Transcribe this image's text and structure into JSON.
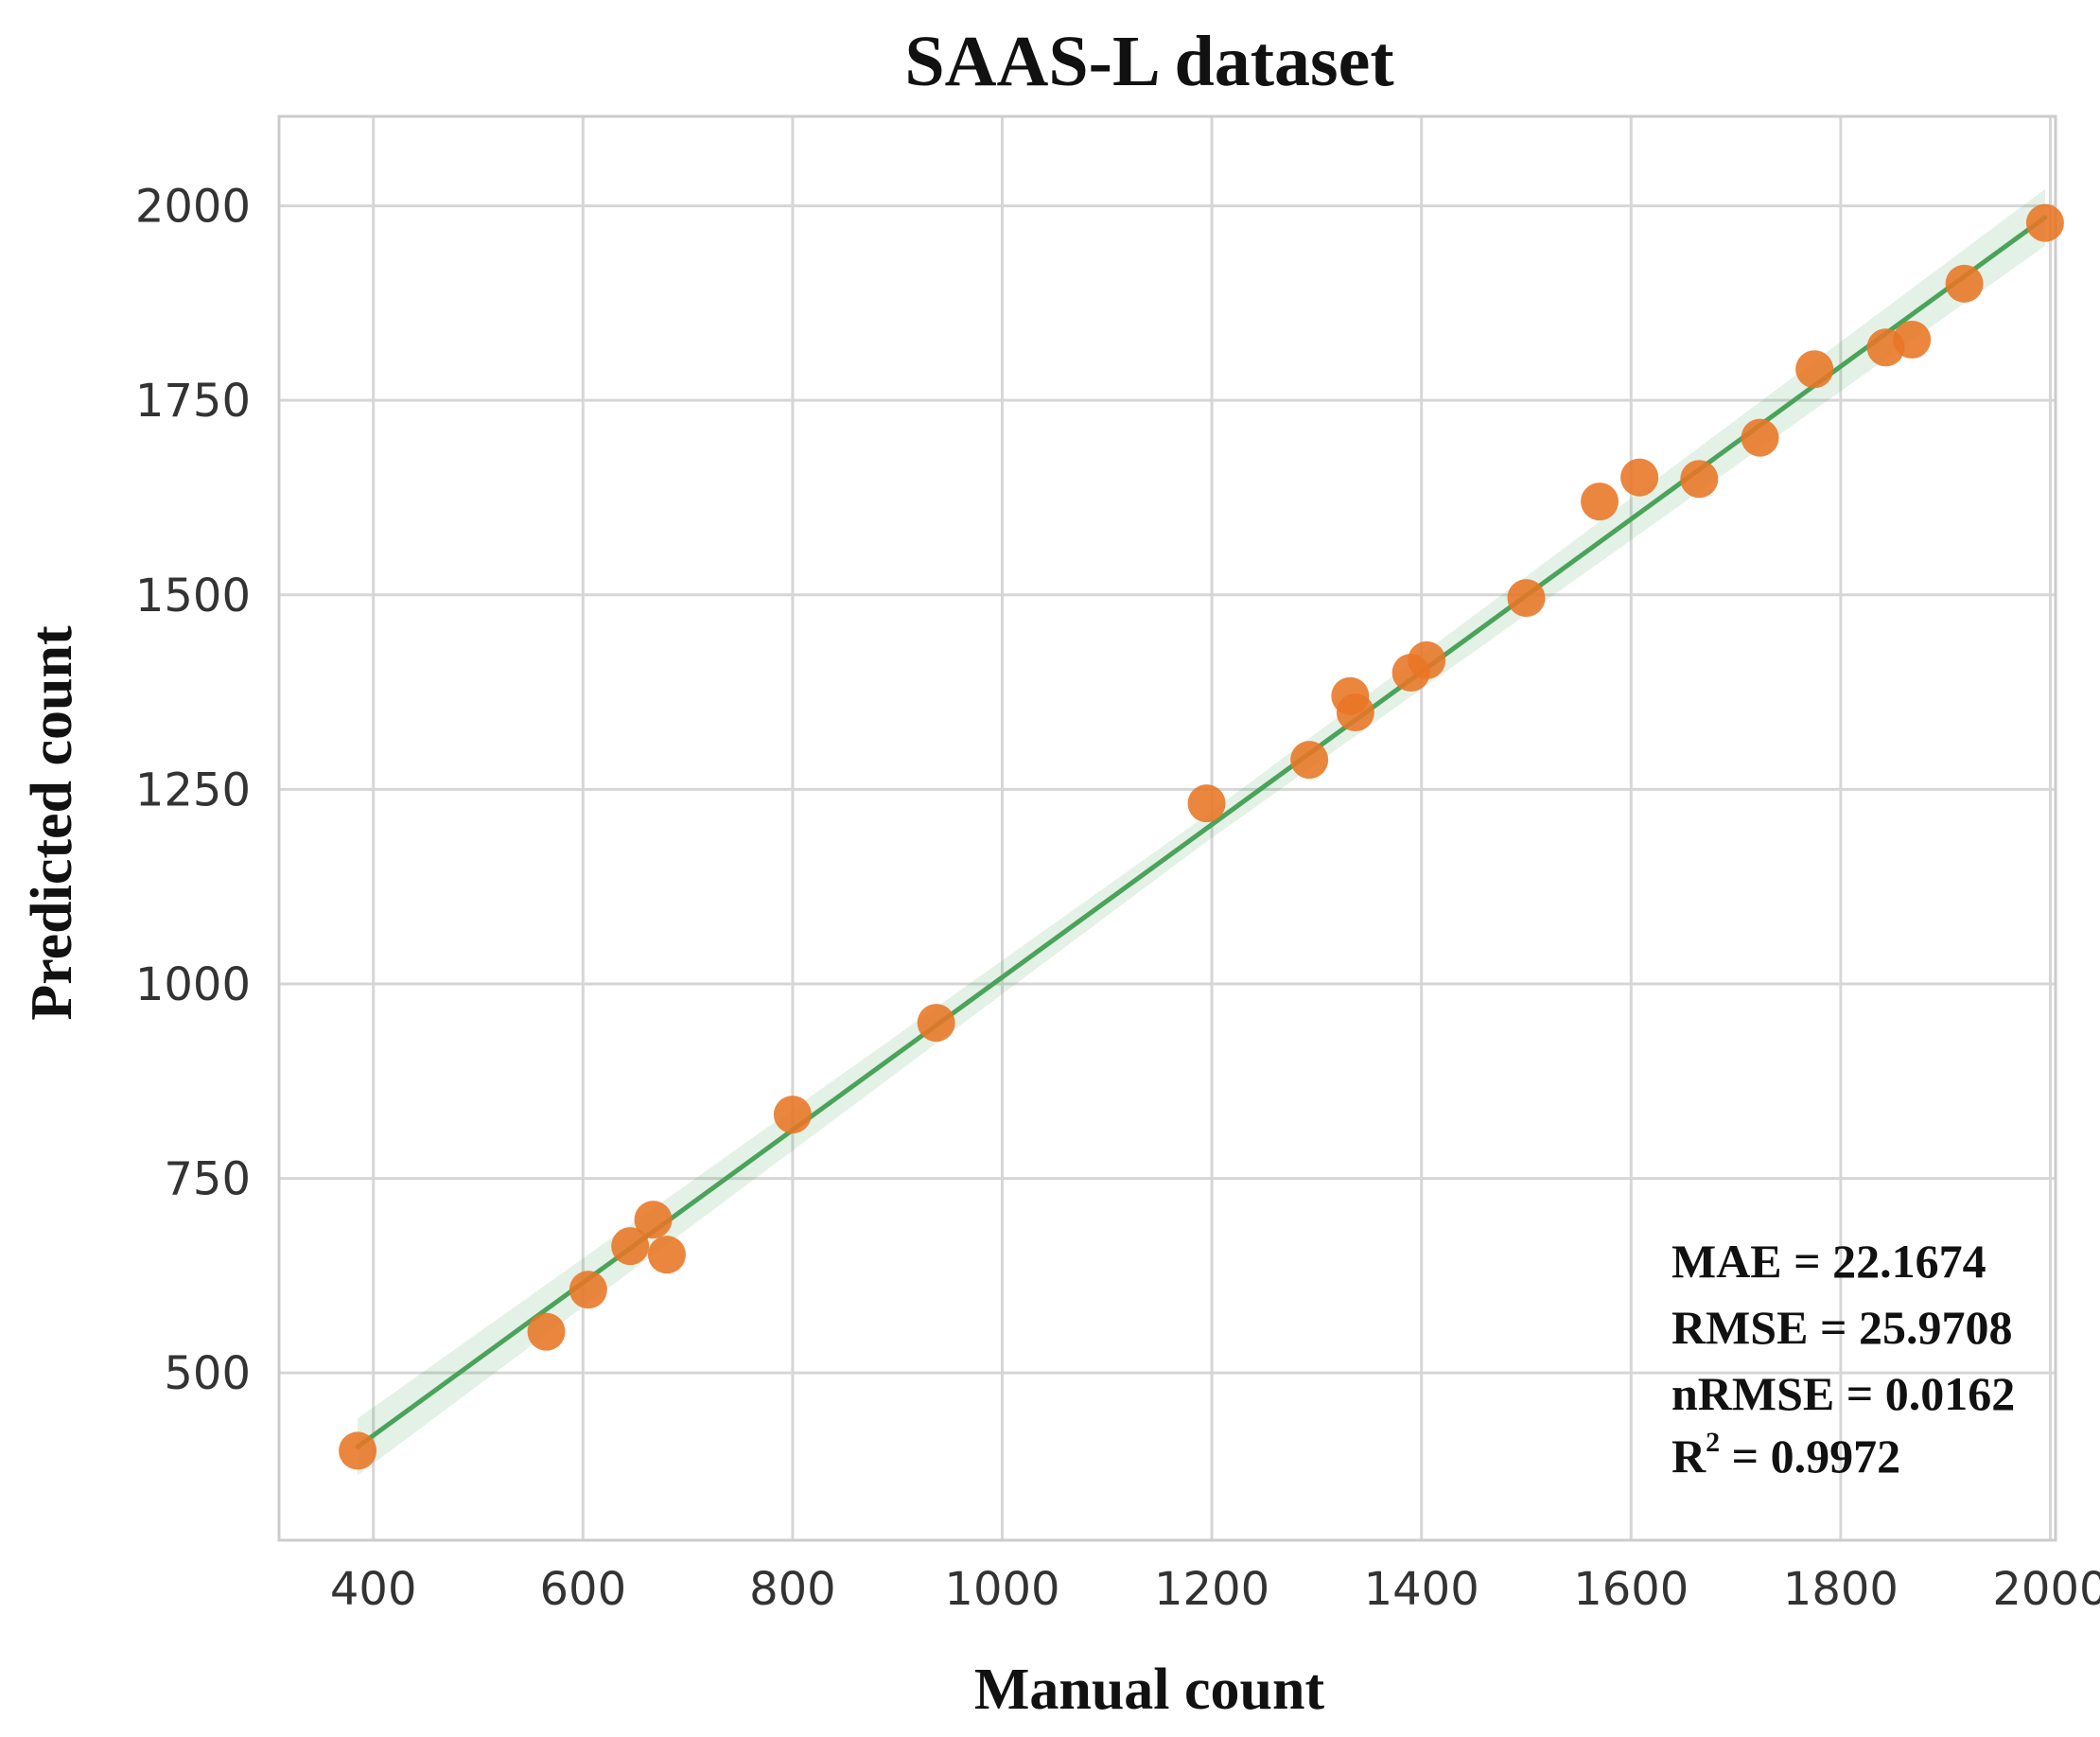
{
  "chart_data": {
    "type": "scatter",
    "title": "SAAS-L dataset",
    "xlabel": "Manual count",
    "ylabel": "Predicted count",
    "xlim": [
      310,
      2005
    ],
    "ylim": [
      285,
      2115
    ],
    "xticks": [
      400,
      600,
      800,
      1000,
      1200,
      1400,
      1600,
      1800,
      2000
    ],
    "yticks": [
      500,
      750,
      1000,
      1250,
      1500,
      1750,
      2000
    ],
    "grid": true,
    "series": [
      {
        "x": [
          385,
          565,
          605,
          645,
          667,
          680,
          800,
          937,
          1195,
          1293,
          1332,
          1337,
          1390,
          1405,
          1500,
          1570,
          1608,
          1665,
          1723,
          1775,
          1843,
          1868,
          1918,
          1995
        ],
        "y": [
          400,
          553,
          607,
          663,
          697,
          652,
          832,
          950,
          1232,
          1288,
          1370,
          1349,
          1400,
          1416,
          1496,
          1620,
          1651,
          1649,
          1702,
          1790,
          1818,
          1828,
          1900,
          1978
        ]
      }
    ],
    "regression": {
      "x": [
        385,
        1995
      ],
      "y": [
        405,
        1985
      ]
    },
    "annotations": {
      "mae": "MAE = 22.1674",
      "rmse": "RMSE = 25.9708",
      "nrmse": "nRMSE = 0.0162",
      "r2_prefix": "R",
      "r2_exp": "2",
      "r2_suffix": " = 0.9972"
    },
    "colors": {
      "points": "#E87524",
      "line": "#4AA35A",
      "band": "#4AA35A",
      "grid": "#D6D6D6",
      "frame": "#CCCCCC"
    }
  }
}
